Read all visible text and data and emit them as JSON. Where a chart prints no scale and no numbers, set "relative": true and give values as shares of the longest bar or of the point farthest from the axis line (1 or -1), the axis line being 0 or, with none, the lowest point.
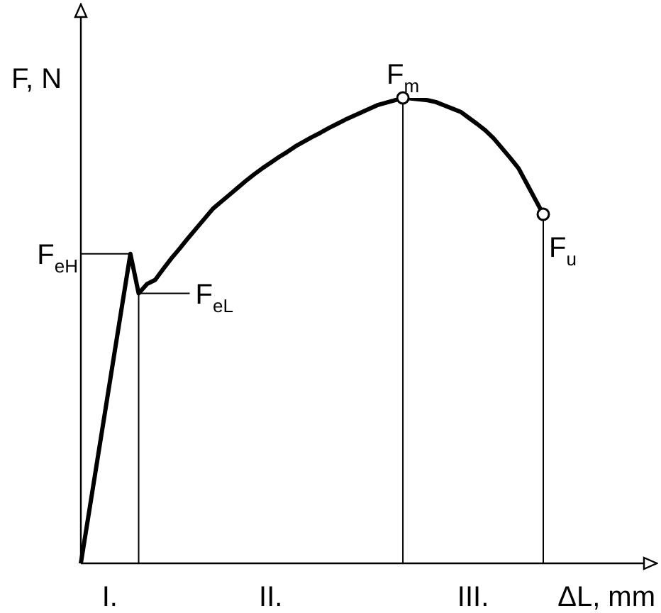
{
  "chart_data": {
    "type": "line",
    "relative": true,
    "xlabel": "ΔL, mm",
    "ylabel": "F, N",
    "categories": [
      null,
      null,
      null,
      null,
      null,
      null,
      null,
      null,
      null,
      null,
      null,
      null,
      null,
      null,
      null,
      null,
      null,
      null,
      null,
      null,
      null,
      null,
      null,
      null,
      null,
      null,
      null,
      null,
      null,
      null,
      null,
      null,
      null,
      null,
      null,
      null,
      null,
      null,
      null,
      null,
      null,
      null,
      null,
      null,
      null,
      null,
      null,
      null,
      null,
      null,
      null,
      null,
      null,
      null,
      null,
      null,
      null
    ],
    "series": [
      {
        "color": "#000000",
        "values": [
          0,
          0.111,
          0.222,
          0.333,
          0.444,
          0.555,
          0.665,
          0.58,
          0.6,
          0.609,
          0.633,
          0.656,
          0.677,
          0.699,
          0.72,
          0.741,
          0.762,
          0.777,
          0.792,
          0.807,
          0.822,
          0.836,
          0.849,
          0.861,
          0.873,
          0.884,
          0.896,
          0.906,
          0.916,
          0.925,
          0.935,
          0.944,
          0.953,
          0.961,
          0.969,
          0.977,
          0.985,
          0.99,
          0.995,
          1.0,
          0.999,
          0.997,
          0.995,
          0.991,
          0.984,
          0.977,
          0.97,
          0.957,
          0.944,
          0.93,
          0.913,
          0.892,
          0.871,
          0.849,
          0.816,
          0.783,
          0.75
        ]
      }
    ],
    "ref_lines": [
      {
        "axis": "y",
        "value": 0.665,
        "label": "F$_{eH}$"
      }
    ],
    "annotations": [
      "F$_{eL}$",
      "F$_{m}$",
      "F$_{u}$",
      "I.",
      "II.",
      "III."
    ]
  }
}
